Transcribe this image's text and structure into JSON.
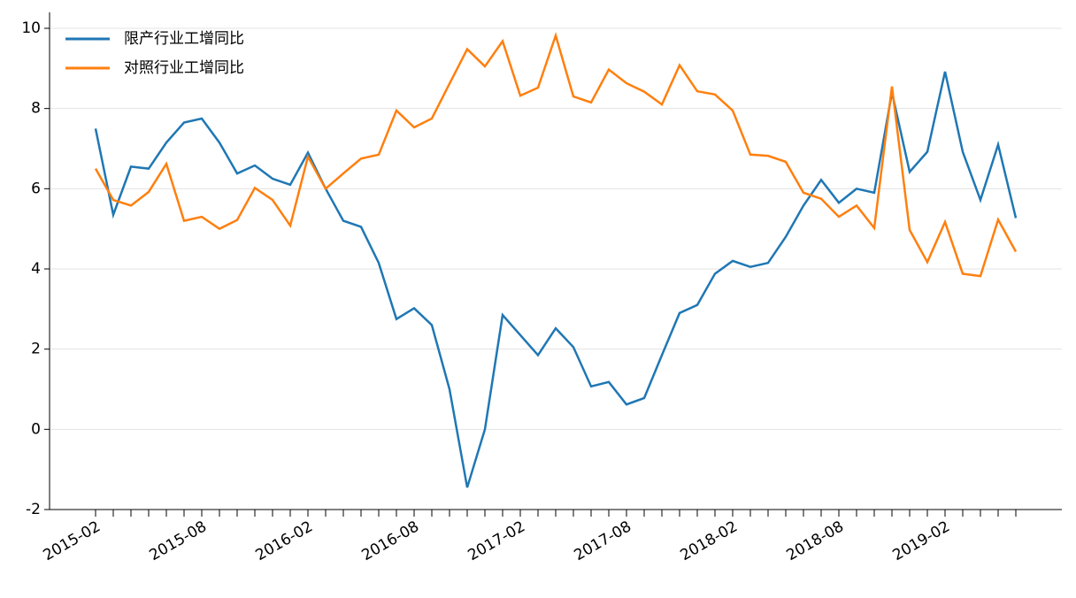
{
  "chart_data": {
    "type": "line",
    "categories": [
      "2015-02",
      null,
      null,
      null,
      null,
      null,
      "2015-08",
      null,
      null,
      null,
      null,
      null,
      "2016-02",
      null,
      null,
      null,
      null,
      null,
      "2016-08",
      null,
      null,
      null,
      null,
      null,
      "2017-02",
      null,
      null,
      null,
      null,
      null,
      "2017-08",
      null,
      null,
      null,
      null,
      null,
      "2018-02",
      null,
      null,
      null,
      null,
      null,
      "2018-08",
      null,
      null,
      null,
      null,
      null,
      "2019-02",
      null,
      null,
      null,
      null
    ],
    "series": [
      {
        "name": "限产行业工增同比",
        "color": "#1f77b4",
        "values": [
          7.5,
          5.35,
          6.55,
          6.5,
          7.15,
          7.65,
          7.75,
          7.15,
          6.38,
          6.58,
          6.25,
          6.1,
          6.9,
          6.0,
          5.2,
          5.05,
          4.15,
          2.75,
          3.02,
          2.6,
          1.0,
          -1.45,
          0.0,
          2.85,
          2.35,
          1.85,
          2.52,
          2.05,
          1.07,
          1.18,
          0.62,
          0.78,
          1.85,
          2.9,
          3.1,
          3.88,
          4.2,
          4.05,
          4.15,
          4.8,
          5.58,
          6.22,
          5.65,
          6.0,
          5.9,
          8.4,
          6.42,
          6.92,
          8.92,
          6.92,
          5.72,
          7.1,
          5.27
        ]
      },
      {
        "name": "对照行业工增同比",
        "color": "#ff7f0e",
        "values": [
          6.5,
          5.72,
          5.58,
          5.92,
          6.62,
          5.2,
          5.3,
          5.0,
          5.22,
          6.02,
          5.72,
          5.08,
          6.8,
          6.0,
          6.38,
          6.75,
          6.85,
          7.95,
          7.53,
          7.75,
          8.62,
          9.48,
          9.05,
          9.68,
          8.32,
          8.52,
          9.82,
          8.3,
          8.15,
          8.97,
          8.63,
          8.42,
          8.1,
          9.08,
          8.43,
          8.35,
          7.95,
          6.85,
          6.82,
          6.67,
          5.9,
          5.75,
          5.3,
          5.58,
          5.02,
          8.55,
          4.97,
          4.17,
          5.17,
          3.88,
          3.82,
          5.23,
          4.43
        ]
      }
    ],
    "ylim": [
      -2,
      10.4
    ],
    "yticks": [
      -2,
      0,
      2,
      4,
      6,
      8,
      10
    ],
    "grid": true,
    "legend": "upper left"
  }
}
